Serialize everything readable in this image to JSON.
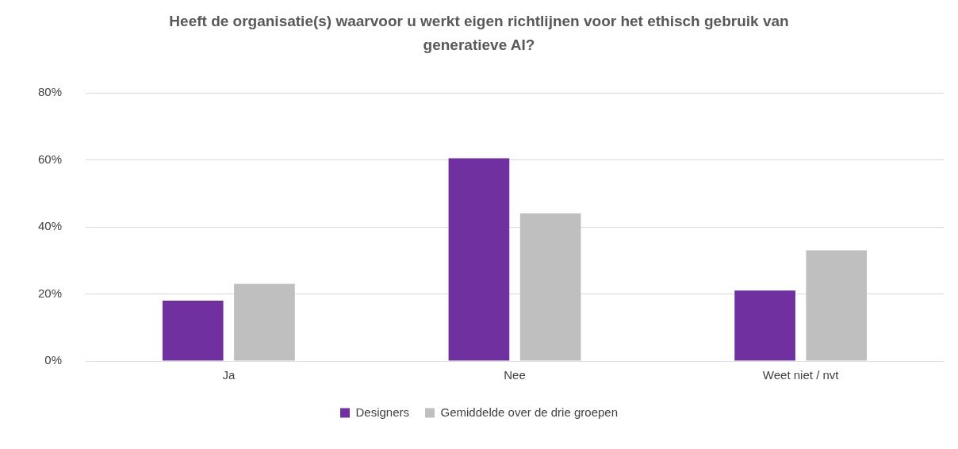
{
  "chart_data": {
    "type": "bar",
    "title": "Heeft de organisatie(s) waarvoor u werkt eigen richtlijnen voor het ethisch gebruik van generatieve AI?",
    "categories": [
      "Ja",
      "Nee",
      "Weet niet / nvt"
    ],
    "series": [
      {
        "name": "Designers",
        "color": "#7030a0",
        "values": [
          18,
          60.5,
          21
        ]
      },
      {
        "name": "Gemiddelde over de drie groepen",
        "color": "#bfbfbf",
        "values": [
          23,
          44,
          33
        ]
      }
    ],
    "ylim": [
      0,
      80
    ],
    "yticks": [
      {
        "value": 0,
        "label": "0%"
      },
      {
        "value": 20,
        "label": "20%"
      },
      {
        "value": 40,
        "label": "40%"
      },
      {
        "value": 60,
        "label": "60%"
      },
      {
        "value": 80,
        "label": "80%"
      }
    ],
    "grid": "y",
    "legend": "bottom"
  }
}
